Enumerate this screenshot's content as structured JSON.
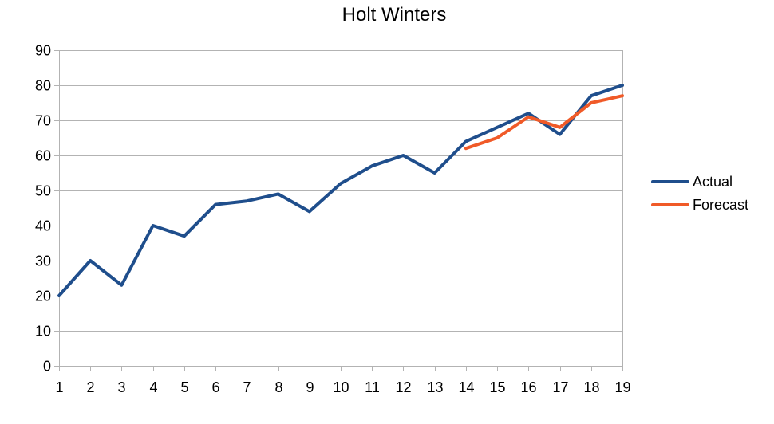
{
  "chart_data": {
    "type": "line",
    "title": "Holt Winters",
    "xlabel": "",
    "ylabel": "",
    "x": [
      1,
      2,
      3,
      4,
      5,
      6,
      7,
      8,
      9,
      10,
      11,
      12,
      13,
      14,
      15,
      16,
      17,
      18,
      19
    ],
    "ylim": [
      0,
      90
    ],
    "yticks": [
      0,
      10,
      20,
      30,
      40,
      50,
      60,
      70,
      80,
      90
    ],
    "grid": "horizontal",
    "legend_position": "right",
    "series": [
      {
        "name": "Actual",
        "color": "#1F4E8C",
        "x": [
          1,
          2,
          3,
          4,
          5,
          6,
          7,
          8,
          9,
          10,
          11,
          12,
          13,
          14,
          15,
          16,
          17,
          18,
          19
        ],
        "values": [
          20,
          30,
          23,
          40,
          37,
          46,
          47,
          49,
          44,
          52,
          57,
          60,
          55,
          64,
          68,
          72,
          66,
          77,
          80
        ]
      },
      {
        "name": "Forecast",
        "color": "#F05A28",
        "x": [
          14,
          15,
          16,
          17,
          18,
          19
        ],
        "values": [
          62,
          65,
          71,
          68,
          75,
          77
        ]
      }
    ]
  }
}
